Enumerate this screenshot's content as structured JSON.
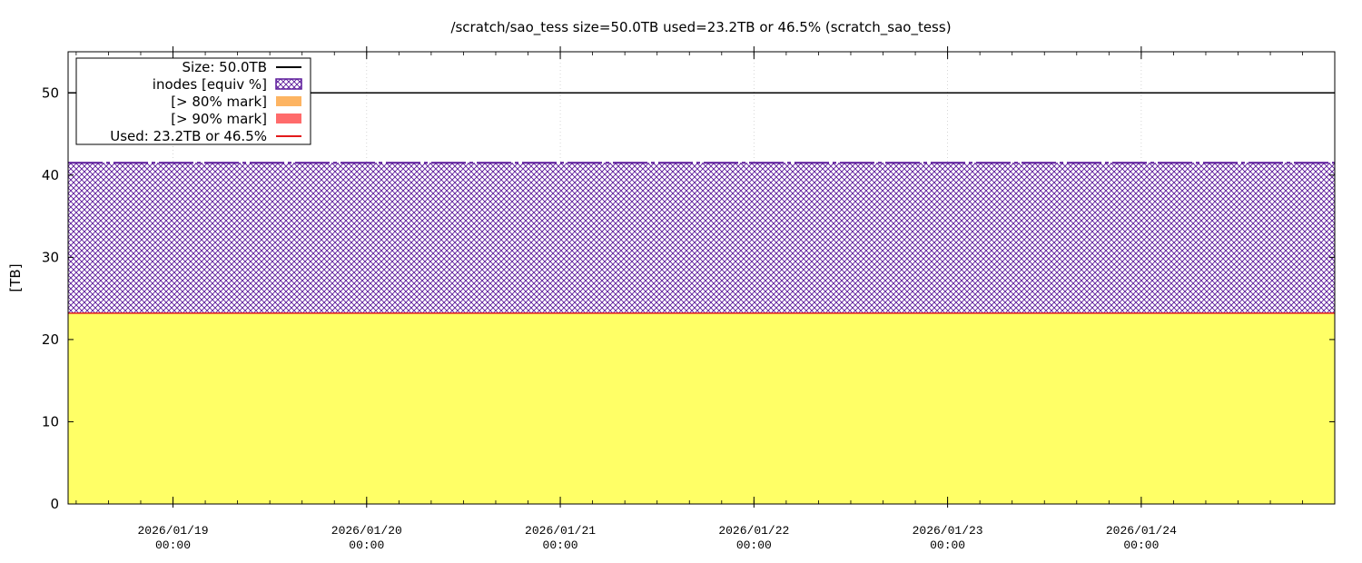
{
  "chart_data": {
    "type": "area",
    "title": "/scratch/sao_tess size=50.0TB used=23.2TB or 46.5% (scratch_sao_tess)",
    "ylabel": "[TB]",
    "ylim": [
      0,
      55
    ],
    "yticks": [
      0,
      10,
      20,
      30,
      40,
      50
    ],
    "xlim": [
      "2026/01/18 11:00",
      "2026/01/24 23:59"
    ],
    "xticks": [
      {
        "date": "2026/01/19",
        "time": "00:00",
        "value": "2026/01/19 00:00"
      },
      {
        "date": "2026/01/20",
        "time": "00:00",
        "value": "2026/01/20 00:00"
      },
      {
        "date": "2026/01/21",
        "time": "00:00",
        "value": "2026/01/21 00:00"
      },
      {
        "date": "2026/01/22",
        "time": "00:00",
        "value": "2026/01/22 00:00"
      },
      {
        "date": "2026/01/23",
        "time": "00:00",
        "value": "2026/01/23 00:00"
      },
      {
        "date": "2026/01/24",
        "time": "00:00",
        "value": "2026/01/24 00:00"
      }
    ],
    "grid": true,
    "legend_placement": "top-left",
    "series": [
      {
        "name": "Size: 50.0TB",
        "kind": "line",
        "color": "#000000",
        "value": 50.0
      },
      {
        "name": "inodes [equiv %]",
        "kind": "hatched-area",
        "color": "#5a189a",
        "value": 41.5
      },
      {
        "name": "[> 80% mark]",
        "kind": "area",
        "color": "#fdb462",
        "value": null
      },
      {
        "name": "[> 90% mark]",
        "kind": "area",
        "color": "#ff6b6b",
        "value": null
      },
      {
        "name": "Used: 23.2TB or 46.5%",
        "kind": "line",
        "color": "#e31a1c",
        "value": 23.2
      }
    ],
    "used_fill_color": "#ffff66"
  }
}
